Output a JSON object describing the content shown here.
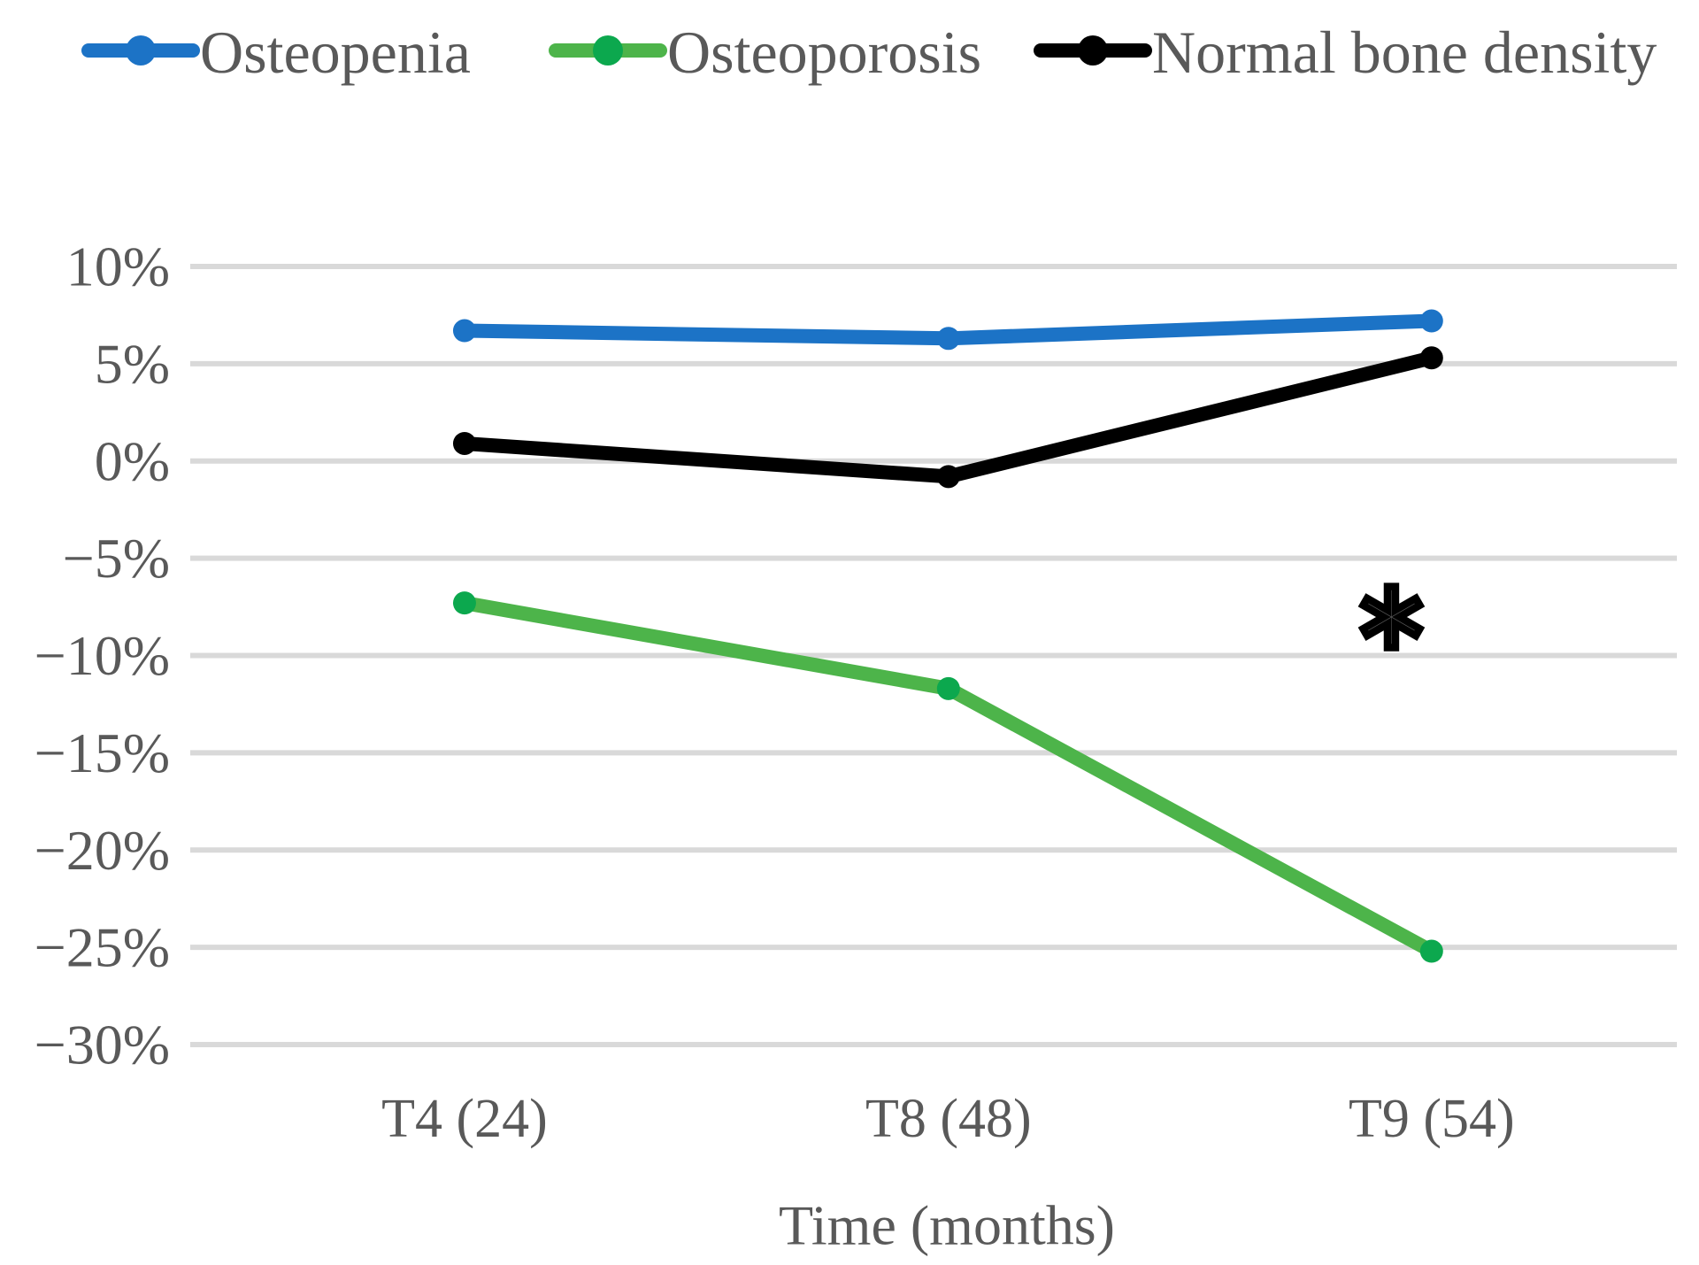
{
  "figure": {
    "background": "#ffffff",
    "text_color": "#595959",
    "gridline_color": "#d9d9d9"
  },
  "chart_data": {
    "type": "line",
    "title": "",
    "categories": [
      "T4 (24)",
      "T8 (48)",
      "T9 (54)"
    ],
    "series": [
      {
        "name": "Osteopenia",
        "values": [
          6.7,
          6.3,
          7.2
        ],
        "line_color": "#1c73c6",
        "marker_color": "#1c73c6"
      },
      {
        "name": "Osteoporosis",
        "values": [
          -7.3,
          -11.7,
          -25.2
        ],
        "line_color": "#4db44a",
        "marker_color": "#0ca84e"
      },
      {
        "name": "Normal bone density",
        "values": [
          0.9,
          -0.8,
          5.3
        ],
        "line_color": "#000000",
        "marker_color": "#000000"
      }
    ],
    "xlabel": "Time (months)",
    "ylabel": "",
    "ylim": [
      -30,
      10
    ],
    "ytick_step": 5,
    "yticks": [
      10,
      5,
      0,
      -5,
      -10,
      -15,
      -20,
      -25,
      -30
    ],
    "ytick_labels": [
      "10%",
      "5%",
      "0%",
      "−5%",
      "−10%",
      "−15%",
      "−20%",
      "−25%",
      "−30%"
    ],
    "grid": "horizontal",
    "legend_position": "top",
    "annotation": {
      "text": "*",
      "near_category": "T9 (54)",
      "approx_percent": -7.9
    }
  }
}
